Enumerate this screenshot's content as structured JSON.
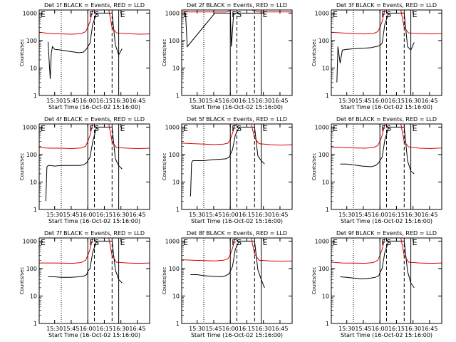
{
  "colors": {
    "events": "#000000",
    "lld": "#e00000",
    "axis": "#000000"
  },
  "shared": {
    "ylabel": "Counts/sec",
    "xlabel": "Start Time (16-Oct-02 15:16:00)",
    "x_ticks": [
      "15:30",
      "15:45",
      "16:00",
      "16:15",
      "16:30",
      "16:45"
    ],
    "x_tick_values": [
      14,
      29,
      44,
      59,
      74,
      89
    ],
    "y_ticks": [
      "1",
      "10",
      "100",
      "1000"
    ],
    "y_tick_values": [
      1,
      10,
      100,
      1000
    ],
    "marker_labels": {
      "e": "E",
      "f": "F",
      "s": "S"
    }
  },
  "chart_data": [
    {
      "type": "line",
      "title": "Det 1f BLACK = Events, RED = LLD",
      "y_scale": "log",
      "ylim": [
        1,
        1300
      ],
      "xlim": [
        0,
        100
      ],
      "series": [
        {
          "name": "Events",
          "color": "#000000",
          "x": [
            8,
            10,
            11,
            12,
            14,
            20,
            28,
            36,
            40,
            43,
            44,
            46,
            48.5,
            52,
            55,
            57,
            59,
            61,
            62,
            63,
            66,
            69,
            72,
            75
          ],
          "y": [
            90,
            4,
            35,
            60,
            48,
            45,
            40,
            36,
            38,
            50,
            60,
            80,
            400,
            1000,
            1000,
            1000,
            1000,
            1000,
            1000,
            1000,
            1000,
            70,
            30,
            50
          ]
        },
        {
          "name": "LLD",
          "color": "#e00000",
          "x": [
            0,
            10,
            20,
            30,
            38,
            42,
            44,
            46,
            48.5,
            52,
            60,
            63,
            66,
            70,
            80,
            90,
            100
          ],
          "y": [
            200,
            180,
            175,
            170,
            180,
            210,
            300,
            500,
            1300,
            1300,
            1300,
            1300,
            300,
            190,
            180,
            170,
            175
          ]
        }
      ],
      "markers": {
        "dotted": [
          20
        ],
        "solid": [
          44,
          72
        ],
        "dashed": [
          50,
          66
        ],
        "labels": [
          {
            "t": "E",
            "x": 0
          },
          {
            "t": "F",
            "x": 44
          },
          {
            "t": "S",
            "x": 48.5
          },
          {
            "t": "E",
            "x": 72
          }
        ]
      }
    },
    {
      "type": "line",
      "title": "Det 2f BLACK = Events, RED = LLD",
      "y_scale": "log",
      "ylim": [
        1,
        1300
      ],
      "xlim": [
        0,
        100
      ],
      "series": [
        {
          "name": "Events",
          "color": "#000000",
          "x": [
            2,
            3.5,
            5,
            30,
            40,
            43,
            44,
            45,
            47,
            52,
            55,
            60,
            63,
            66,
            69,
            72,
            75
          ],
          "y": [
            1000,
            1000,
            60,
            1000,
            1000,
            1000,
            1000,
            60,
            1000,
            1000,
            1000,
            1000,
            1000,
            1000,
            1000,
            1000,
            1000
          ]
        },
        {
          "name": "LLD",
          "color": "#e00000",
          "x": [
            0,
            10,
            20,
            30,
            38,
            40,
            42,
            44,
            46,
            48,
            52,
            58,
            61,
            63,
            66,
            70,
            80,
            90,
            100
          ],
          "y": [
            1100,
            1100,
            1100,
            1100,
            1100,
            1100,
            1150,
            1300,
            1300,
            1300,
            1300,
            1300,
            1300,
            1300,
            1200,
            1100,
            1100,
            1100,
            1100
          ]
        }
      ],
      "markers": {
        "dotted": [
          20
        ],
        "solid": [
          44,
          72
        ],
        "dashed": [
          50,
          66
        ],
        "labels": [
          {
            "t": "E",
            "x": 0
          },
          {
            "t": "F",
            "x": 44
          },
          {
            "t": "S",
            "x": 48.5
          },
          {
            "t": "E",
            "x": 72
          }
        ]
      }
    },
    {
      "type": "line",
      "title": "Det 3f BLACK = Events, RED = LLD",
      "y_scale": "log",
      "ylim": [
        1,
        1300
      ],
      "xlim": [
        0,
        100
      ],
      "series": [
        {
          "name": "Events",
          "color": "#000000",
          "x": [
            5,
            6,
            8,
            10,
            14,
            20,
            26,
            30,
            36,
            40,
            44,
            46,
            48.5,
            52,
            60,
            66,
            69,
            72,
            75
          ],
          "y": [
            3,
            60,
            15,
            45,
            48,
            50,
            52,
            53,
            55,
            60,
            65,
            80,
            400,
            1000,
            1000,
            1000,
            60,
            45,
            85
          ]
        },
        {
          "name": "LLD",
          "color": "#e00000",
          "x": [
            0,
            10,
            20,
            30,
            38,
            42,
            44,
            46,
            48.5,
            52,
            60,
            63,
            66,
            70,
            80,
            90,
            100
          ],
          "y": [
            200,
            190,
            180,
            175,
            180,
            210,
            300,
            500,
            1300,
            1300,
            1300,
            1300,
            300,
            190,
            180,
            175,
            180
          ]
        }
      ],
      "markers": {
        "dotted": [
          20
        ],
        "solid": [
          44,
          72
        ],
        "dashed": [
          50,
          66
        ],
        "labels": [
          {
            "t": "E",
            "x": 0
          },
          {
            "t": "F",
            "x": 44
          },
          {
            "t": "S",
            "x": 48.5
          },
          {
            "t": "E",
            "x": 72
          }
        ]
      }
    },
    {
      "type": "line",
      "title": "Det 4f BLACK = Events, RED = LLD",
      "y_scale": "log",
      "ylim": [
        1,
        1300
      ],
      "xlim": [
        0,
        100
      ],
      "series": [
        {
          "name": "Events",
          "color": "#000000",
          "x": [
            6,
            7,
            8,
            10,
            14,
            20,
            28,
            36,
            40,
            43,
            44,
            46,
            48.5,
            52,
            60,
            66,
            69,
            72,
            75
          ],
          "y": [
            2,
            35,
            40,
            40,
            38,
            40,
            40,
            40,
            42,
            50,
            60,
            80,
            300,
            1000,
            1000,
            1000,
            70,
            40,
            30
          ]
        },
        {
          "name": "LLD",
          "color": "#e00000",
          "x": [
            0,
            10,
            20,
            30,
            38,
            42,
            44,
            46,
            48.5,
            52,
            60,
            63,
            66,
            70,
            80,
            90,
            100
          ],
          "y": [
            180,
            170,
            170,
            165,
            175,
            200,
            300,
            500,
            1300,
            1300,
            1300,
            1300,
            300,
            180,
            170,
            165,
            170
          ]
        }
      ],
      "markers": {
        "dotted": [
          20
        ],
        "solid": [
          44,
          72
        ],
        "dashed": [
          50,
          66
        ],
        "labels": [
          {
            "t": "E",
            "x": 0
          },
          {
            "t": "F",
            "x": 44
          },
          {
            "t": "S",
            "x": 48.5
          },
          {
            "t": "E",
            "x": 72
          }
        ]
      }
    },
    {
      "type": "line",
      "title": "Det 5f BLACK = Events, RED = LLD",
      "y_scale": "log",
      "ylim": [
        1,
        1300
      ],
      "xlim": [
        0,
        100
      ],
      "series": [
        {
          "name": "Events",
          "color": "#000000",
          "x": [
            8,
            9,
            10,
            14,
            20,
            28,
            36,
            40,
            43,
            44,
            46,
            48.5,
            52,
            60,
            66,
            69,
            72,
            75
          ],
          "y": [
            3,
            50,
            60,
            60,
            60,
            65,
            68,
            70,
            80,
            100,
            150,
            500,
            1000,
            1000,
            1000,
            90,
            60,
            45
          ]
        },
        {
          "name": "LLD",
          "color": "#e00000",
          "x": [
            0,
            10,
            20,
            30,
            38,
            42,
            44,
            46,
            48.5,
            52,
            60,
            63,
            66,
            70,
            80,
            90,
            100
          ],
          "y": [
            260,
            250,
            240,
            230,
            240,
            260,
            350,
            600,
            1300,
            1300,
            1300,
            1300,
            400,
            250,
            230,
            220,
            230
          ]
        }
      ],
      "markers": {
        "dotted": [
          20
        ],
        "solid": [
          44,
          72
        ],
        "dashed": [
          50,
          66
        ],
        "labels": [
          {
            "t": "E",
            "x": 0
          },
          {
            "t": "F",
            "x": 44
          },
          {
            "t": "S",
            "x": 48.5
          },
          {
            "t": "E",
            "x": 72
          }
        ]
      }
    },
    {
      "type": "line",
      "title": "Det 6f BLACK = Events, RED = LLD",
      "y_scale": "log",
      "ylim": [
        1,
        1300
      ],
      "xlim": [
        0,
        100
      ],
      "series": [
        {
          "name": "Events",
          "color": "#000000",
          "x": [
            8,
            14,
            20,
            28,
            36,
            40,
            43,
            44,
            46,
            48.5,
            52,
            60,
            66,
            69,
            72,
            75
          ],
          "y": [
            45,
            45,
            42,
            38,
            36,
            40,
            50,
            60,
            80,
            350,
            1000,
            1000,
            1000,
            60,
            25,
            20
          ]
        },
        {
          "name": "LLD",
          "color": "#e00000",
          "x": [
            0,
            10,
            20,
            30,
            38,
            42,
            44,
            46,
            48.5,
            52,
            60,
            63,
            66,
            70,
            80,
            90,
            100
          ],
          "y": [
            190,
            180,
            175,
            170,
            180,
            210,
            300,
            500,
            1300,
            1300,
            1300,
            1300,
            300,
            190,
            170,
            165,
            175
          ]
        }
      ],
      "markers": {
        "dotted": [
          20
        ],
        "solid": [
          44,
          72
        ],
        "dashed": [
          50,
          66
        ],
        "labels": [
          {
            "t": "E",
            "x": 0
          },
          {
            "t": "F",
            "x": 44
          },
          {
            "t": "S",
            "x": 48.5
          },
          {
            "t": "E",
            "x": 72
          }
        ]
      }
    },
    {
      "type": "line",
      "title": "Det 7f BLACK = Events, RED = LLD",
      "y_scale": "log",
      "ylim": [
        1,
        1300
      ],
      "xlim": [
        0,
        100
      ],
      "series": [
        {
          "name": "Events",
          "color": "#000000",
          "x": [
            8,
            14,
            20,
            28,
            36,
            40,
            43,
            44,
            46,
            48.5,
            52,
            60,
            66,
            69,
            72,
            75
          ],
          "y": [
            50,
            50,
            48,
            48,
            50,
            52,
            60,
            80,
            100,
            400,
            1000,
            1000,
            1000,
            90,
            40,
            30
          ]
        },
        {
          "name": "LLD",
          "color": "#e00000",
          "x": [
            0,
            10,
            20,
            30,
            38,
            42,
            44,
            46,
            48.5,
            52,
            60,
            63,
            66,
            70,
            80,
            90,
            100
          ],
          "y": [
            160,
            160,
            158,
            155,
            165,
            200,
            300,
            500,
            1300,
            1300,
            1300,
            1300,
            300,
            170,
            160,
            155,
            160
          ]
        }
      ],
      "markers": {
        "dotted": [
          20
        ],
        "solid": [
          44,
          72
        ],
        "dashed": [
          50,
          66
        ],
        "labels": [
          {
            "t": "E",
            "x": 0
          },
          {
            "t": "F",
            "x": 44
          },
          {
            "t": "S",
            "x": 48.5
          },
          {
            "t": "E",
            "x": 72
          }
        ]
      }
    },
    {
      "type": "line",
      "title": "Det 8f BLACK = Events, RED = LLD",
      "y_scale": "log",
      "ylim": [
        1,
        1300
      ],
      "xlim": [
        0,
        100
      ],
      "series": [
        {
          "name": "Events",
          "color": "#000000",
          "x": [
            8,
            14,
            20,
            28,
            36,
            40,
            43,
            44,
            46,
            48.5,
            52,
            60,
            66,
            69,
            72,
            75
          ],
          "y": [
            60,
            60,
            55,
            52,
            50,
            55,
            65,
            80,
            120,
            500,
            1000,
            1000,
            1000,
            90,
            40,
            20
          ]
        },
        {
          "name": "LLD",
          "color": "#e00000",
          "x": [
            0,
            10,
            20,
            30,
            38,
            42,
            44,
            46,
            48.5,
            52,
            60,
            63,
            66,
            70,
            80,
            90,
            100
          ],
          "y": [
            210,
            200,
            195,
            190,
            200,
            230,
            320,
            550,
            1300,
            1300,
            1300,
            1300,
            350,
            200,
            190,
            185,
            190
          ]
        }
      ],
      "markers": {
        "dotted": [
          20
        ],
        "solid": [
          44,
          72
        ],
        "dashed": [
          50,
          66
        ],
        "labels": [
          {
            "t": "E",
            "x": 0
          },
          {
            "t": "F",
            "x": 44
          },
          {
            "t": "S",
            "x": 48.5
          },
          {
            "t": "E",
            "x": 72
          }
        ]
      }
    },
    {
      "type": "line",
      "title": "Det 9f BLACK = Events, RED = LLD",
      "y_scale": "log",
      "ylim": [
        1,
        1300
      ],
      "xlim": [
        0,
        100
      ],
      "series": [
        {
          "name": "Events",
          "color": "#000000",
          "x": [
            8,
            14,
            20,
            28,
            36,
            40,
            43,
            44,
            46,
            48.5,
            52,
            60,
            66,
            69,
            72,
            75
          ],
          "y": [
            50,
            48,
            45,
            42,
            45,
            48,
            55,
            70,
            100,
            400,
            1000,
            1000,
            1000,
            80,
            30,
            20
          ]
        },
        {
          "name": "LLD",
          "color": "#e00000",
          "x": [
            0,
            10,
            20,
            30,
            38,
            42,
            44,
            46,
            48.5,
            52,
            60,
            63,
            66,
            70,
            80,
            90,
            100
          ],
          "y": [
            170,
            160,
            158,
            155,
            165,
            200,
            300,
            500,
            1300,
            1300,
            1300,
            1300,
            300,
            170,
            160,
            155,
            160
          ]
        }
      ],
      "markers": {
        "dotted": [
          20
        ],
        "solid": [
          44,
          72
        ],
        "dashed": [
          50,
          66
        ],
        "labels": [
          {
            "t": "E",
            "x": 0
          },
          {
            "t": "F",
            "x": 44
          },
          {
            "t": "S",
            "x": 48.5
          },
          {
            "t": "E",
            "x": 72
          }
        ]
      }
    }
  ]
}
